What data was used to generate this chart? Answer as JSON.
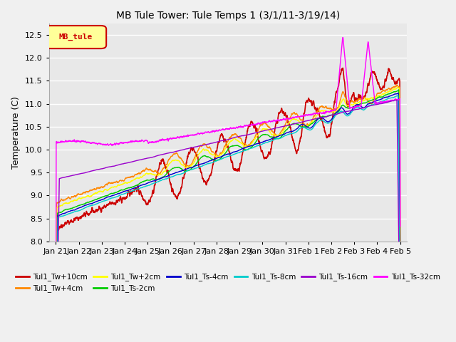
{
  "title": "MB Tule Tower: Tule Temps 1 (3/1/11-3/19/14)",
  "ylabel": "Temperature (C)",
  "ylim": [
    8.0,
    12.75
  ],
  "yticks": [
    8.0,
    8.5,
    9.0,
    9.5,
    10.0,
    10.5,
    11.0,
    11.5,
    12.0,
    12.5
  ],
  "x_labels": [
    "Jan 21",
    "Jan 22",
    "Jan 23",
    "Jan 24",
    "Jan 25",
    "Jan 26",
    "Jan 27",
    "Jan 28",
    "Jan 29",
    "Jan 30",
    "Jan 31",
    "Feb 1",
    "Feb 2",
    "Feb 3",
    "Feb 4",
    "Feb 5"
  ],
  "legend_box_text": "MB_tule",
  "legend_box_color": "#cc0000",
  "legend_box_bg": "#ffff99",
  "series": [
    {
      "name": "Tul1_Tw+10cm",
      "color": "#cc0000"
    },
    {
      "name": "Tul1_Tw+4cm",
      "color": "#ff8800"
    },
    {
      "name": "Tul1_Tw+2cm",
      "color": "#ffff00"
    },
    {
      "name": "Tul1_Ts-2cm",
      "color": "#00cc00"
    },
    {
      "name": "Tul1_Ts-4cm",
      "color": "#0000cc"
    },
    {
      "name": "Tul1_Ts-8cm",
      "color": "#00cccc"
    },
    {
      "name": "Tul1_Ts-16cm",
      "color": "#9900cc"
    },
    {
      "name": "Tul1_Ts-32cm",
      "color": "#ff00ff"
    }
  ],
  "bg_color": "#f0f0f0",
  "plot_bg": "#e8e8e8",
  "grid_color": "#ffffff"
}
